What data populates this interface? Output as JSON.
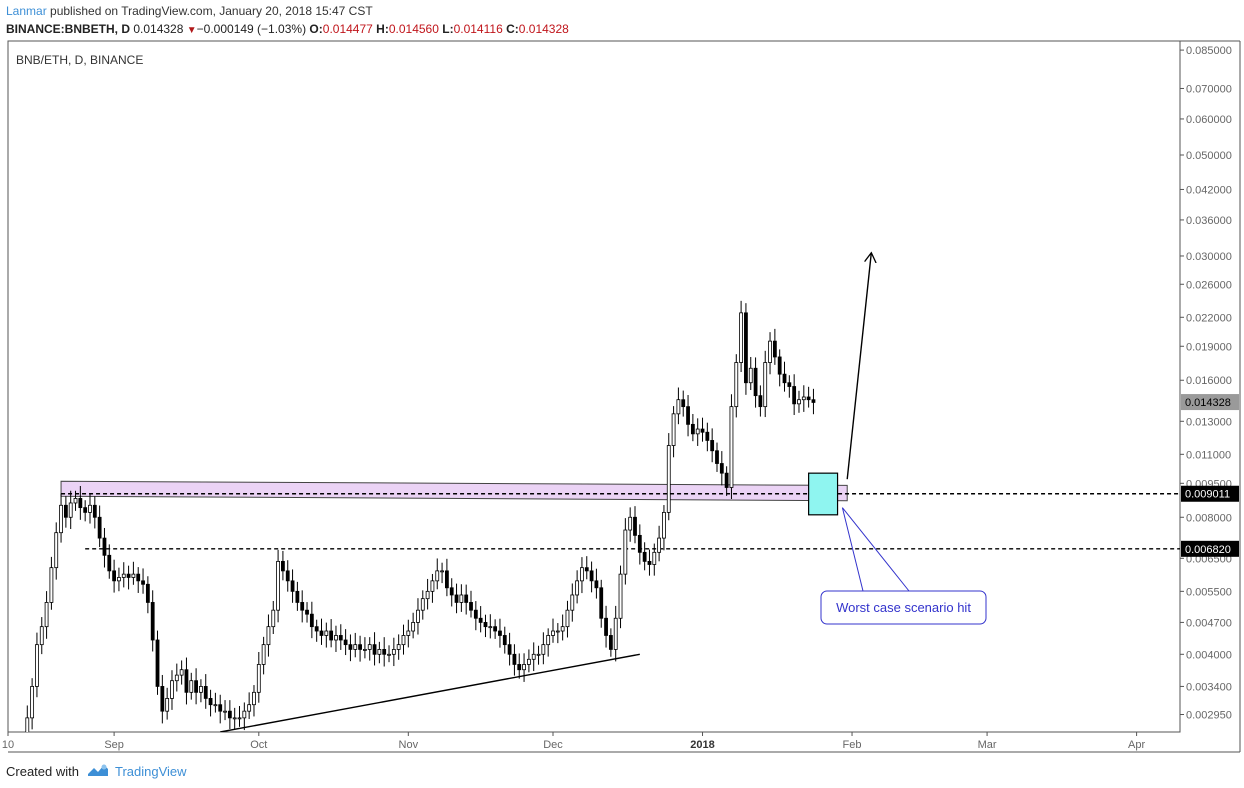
{
  "header": {
    "publisher": "Lanmar",
    "published_text": "published on TradingView.com, January 20, 2018 15:47 CST",
    "symbol": "BINANCE:BNBETH, D",
    "last": "0.014328",
    "change": "−0.000149 (−1.03%)",
    "o_label": "O:",
    "o_value": "0.014477",
    "h_label": "H:",
    "h_value": "0.014560",
    "l_label": "L:",
    "l_value": "0.014116",
    "c_label": "C:",
    "c_value": "0.014328"
  },
  "footer": {
    "created_with": "Created with",
    "brand": "TradingView"
  },
  "colors": {
    "accent": "#3d8fd6",
    "candle": "#000000",
    "zone_fill": "#e6c8f2",
    "box_fill": "#8ff5f0",
    "callout": "#3333cc"
  },
  "chart_data": {
    "type": "candlestick",
    "title": "BNB/ETH, D, BINANCE",
    "y_scale": "log",
    "ylim": [
      0.0027,
      0.089
    ],
    "y_ticks": [
      "0.085000",
      "0.070000",
      "0.060000",
      "0.050000",
      "0.042000",
      "0.036000",
      "0.030000",
      "0.026000",
      "0.022000",
      "0.019000",
      "0.016000",
      "0.013000",
      "0.011000",
      "0.009500",
      "0.008000",
      "0.006500",
      "0.005500",
      "0.004700",
      "0.004000",
      "0.003400",
      "0.002950"
    ],
    "x_ticks": [
      {
        "label": "10",
        "date": "2017-08-10"
      },
      {
        "label": "Sep",
        "date": "2017-09-01"
      },
      {
        "label": "Oct",
        "date": "2017-10-01"
      },
      {
        "label": "Nov",
        "date": "2017-11-01"
      },
      {
        "label": "Dec",
        "date": "2017-12-01"
      },
      {
        "label": "2018",
        "date": "2018-01-01",
        "bold": true
      },
      {
        "label": "Feb",
        "date": "2018-02-01"
      },
      {
        "label": "Mar",
        "date": "2018-03-01"
      },
      {
        "label": "Apr",
        "date": "2018-04-01"
      }
    ],
    "xlim": [
      "2017-08-10",
      "2018-04-10"
    ],
    "start_date": "2017-08-13",
    "closes": [
      0.0025,
      0.0029,
      0.0034,
      0.0042,
      0.0046,
      0.0052,
      0.0062,
      0.0074,
      0.0085,
      0.008,
      0.0086,
      0.0088,
      0.0084,
      0.0082,
      0.0085,
      0.008,
      0.0072,
      0.0066,
      0.0061,
      0.0058,
      0.0059,
      0.006,
      0.0059,
      0.006,
      0.0058,
      0.0057,
      0.0052,
      0.0043,
      0.0034,
      0.003,
      0.0032,
      0.0035,
      0.0036,
      0.0037,
      0.0033,
      0.0035,
      0.0033,
      0.0034,
      0.0032,
      0.0031,
      0.0031,
      0.003,
      0.003,
      0.0029,
      0.0029,
      0.0029,
      0.003,
      0.0031,
      0.0033,
      0.0038,
      0.0042,
      0.0046,
      0.005,
      0.0064,
      0.0061,
      0.0058,
      0.0055,
      0.0052,
      0.005,
      0.0049,
      0.0046,
      0.0045,
      0.0044,
      0.0045,
      0.0043,
      0.0044,
      0.0043,
      0.0042,
      0.0041,
      0.0042,
      0.0041,
      0.0041,
      0.0042,
      0.004,
      0.0041,
      0.004,
      0.004,
      0.0041,
      0.0042,
      0.0044,
      0.0045,
      0.0047,
      0.005,
      0.0053,
      0.0055,
      0.0058,
      0.0061,
      0.0061,
      0.0056,
      0.0054,
      0.0052,
      0.0054,
      0.0052,
      0.005,
      0.0048,
      0.0047,
      0.0046,
      0.0046,
      0.0045,
      0.0044,
      0.0042,
      0.004,
      0.0038,
      0.0037,
      0.0038,
      0.0039,
      0.004,
      0.004,
      0.0042,
      0.0044,
      0.0045,
      0.0045,
      0.0046,
      0.005,
      0.0054,
      0.0058,
      0.0062,
      0.0061,
      0.0058,
      0.0056,
      0.0048,
      0.0044,
      0.0041,
      0.0048,
      0.006,
      0.0075,
      0.008,
      0.0073,
      0.0067,
      0.0064,
      0.0063,
      0.0067,
      0.0072,
      0.0082,
      0.0115,
      0.0135,
      0.0145,
      0.014,
      0.0128,
      0.0122,
      0.0125,
      0.0123,
      0.0118,
      0.0112,
      0.0105,
      0.01,
      0.0093,
      0.014,
      0.0175,
      0.0225,
      0.0158,
      0.017,
      0.0148,
      0.014,
      0.0175,
      0.0195,
      0.018,
      0.0165,
      0.0158,
      0.0155,
      0.0142,
      0.0145,
      0.0147,
      0.0145,
      0.0143
    ],
    "annotations": {
      "support_zone": {
        "start": "2017-08-21",
        "end": "2018-01-31",
        "top_start": 0.0096,
        "bottom_start": 0.0089,
        "top_end": 0.0094,
        "bottom_end": 0.0087
      },
      "line_0_009011": {
        "value": 0.009011,
        "from": "2017-08-21",
        "label": "0.009011"
      },
      "line_0_006820": {
        "value": 0.00682,
        "from": "2017-08-26",
        "label": "0.006820"
      },
      "last_price": {
        "value": 0.014328,
        "label": "0.014328"
      },
      "trendline": [
        {
          "date": "2017-09-23",
          "value": 0.0027
        },
        {
          "date": "2017-12-19",
          "value": 0.004
        }
      ],
      "worst_case_box": {
        "start": "2018-01-23",
        "end": "2018-01-29",
        "top": 0.01,
        "bottom": 0.0081
      },
      "arrow": [
        {
          "date": "2018-01-31",
          "value": 0.0097
        },
        {
          "date": "2018-02-05",
          "value": 0.0305
        }
      ],
      "callout": {
        "text": "Worst case scenario hit",
        "anchor": {
          "date": "2018-01-30",
          "value": 0.0084
        }
      }
    }
  }
}
